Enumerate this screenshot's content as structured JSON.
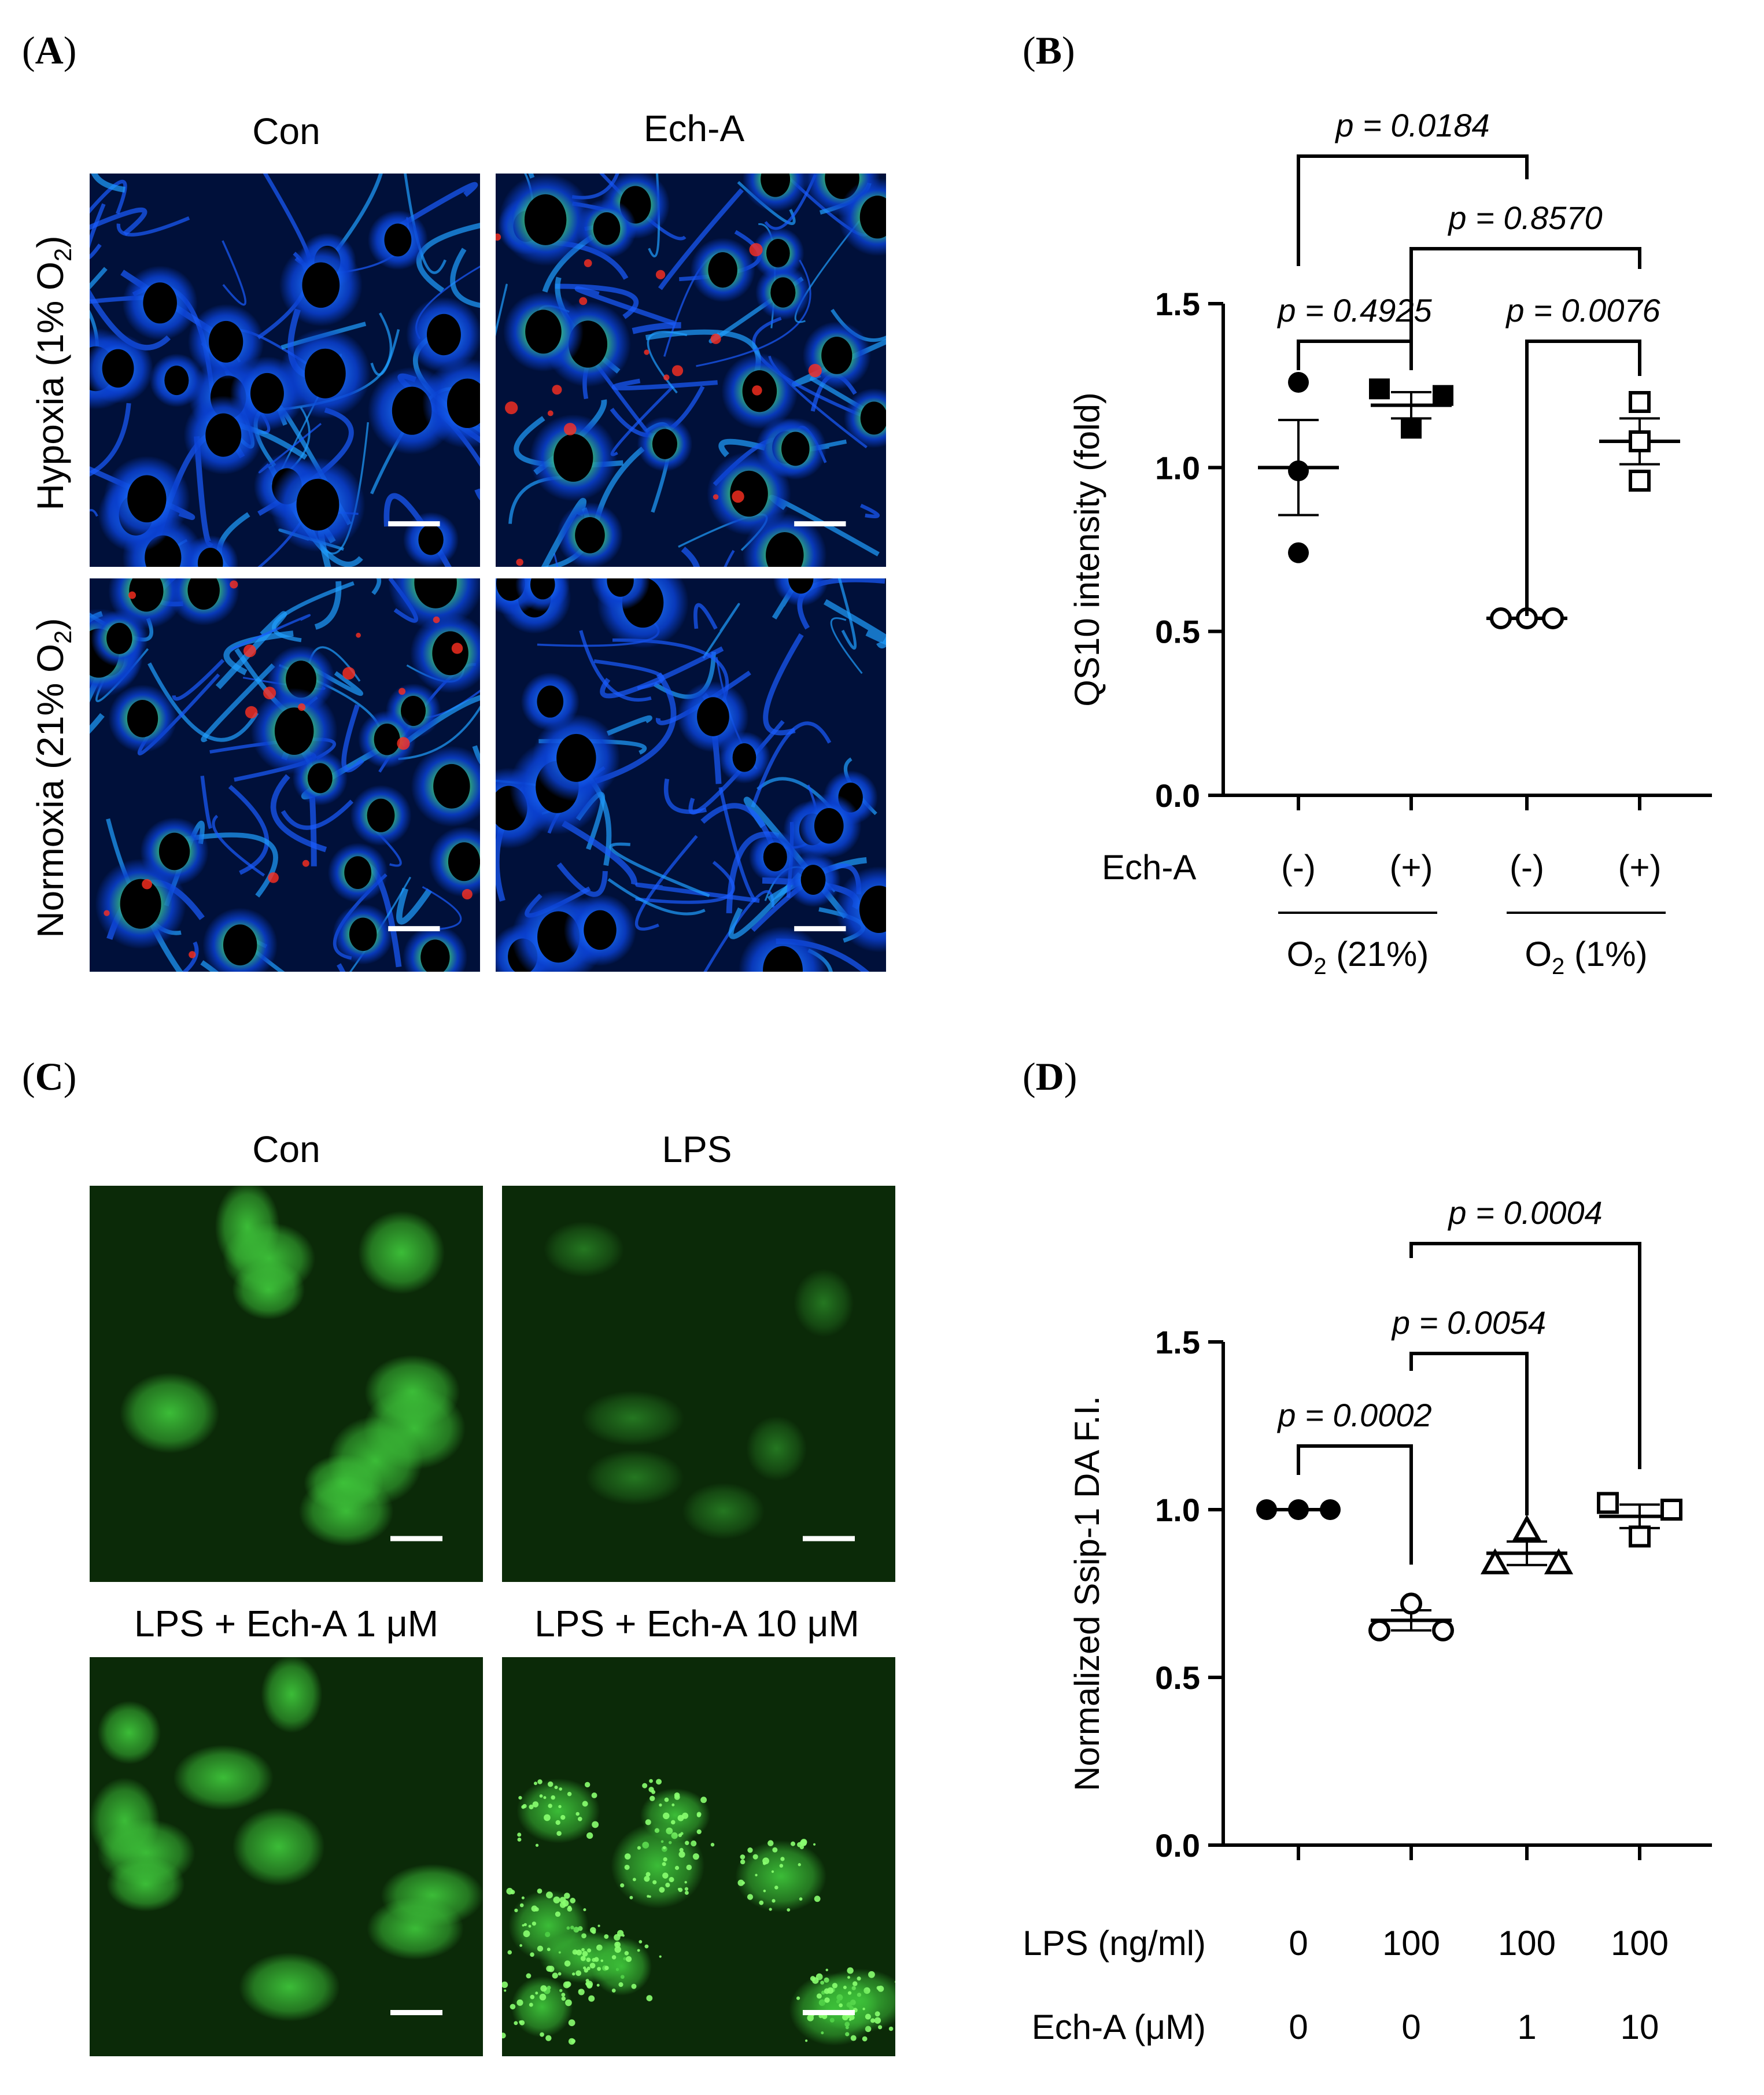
{
  "panels": {
    "a": {
      "letter": "A",
      "col_labels": [
        "Con",
        "Ech-A"
      ],
      "row_labels": [
        "Hypoxia (1% O",
        ")",
        "Normoxia (21% O",
        ")"
      ],
      "row_subscript": "2"
    },
    "b": {
      "letter": "B"
    },
    "c": {
      "letter": "C",
      "col_labels": [
        "Con",
        "LPS"
      ],
      "lower_labels": [
        "LPS + Ech-A 1 μM",
        "LPS + Ech-A 10 μM"
      ]
    },
    "d": {
      "letter": "D"
    }
  },
  "icons": {
    "scalebar": "scale-bar-icon",
    "marker_filled_circle": "filled-circle-marker",
    "marker_filled_square": "filled-square-marker",
    "marker_open_circle": "open-circle-marker",
    "marker_open_square": "open-square-marker",
    "marker_open_triangle": "open-triangle-marker"
  },
  "colors": {
    "heatmap_base": "#00103a",
    "fluorescence_base": "#0b2a08",
    "fluorescence_cell": "#3ec43a"
  },
  "chart_data": [
    {
      "id": "B",
      "type": "scatter",
      "ylabel": "QS10 intensity (fold)",
      "ylim": [
        0,
        1.5
      ],
      "yticks": [
        "0.0",
        "0.5",
        "1.0",
        "1.5"
      ],
      "ytick_values": [
        0,
        0.5,
        1.0,
        1.5
      ],
      "row_labels": [
        "Ech-A"
      ],
      "categories": [
        "(-)",
        "(+)",
        "(-)",
        "(+)"
      ],
      "group_labels": [
        {
          "pre": "O",
          "sub": "2",
          "post": " (21%)"
        },
        {
          "pre": "O",
          "sub": "2",
          "post": " (1%)"
        }
      ],
      "series": [
        {
          "marker": "filled-circle",
          "points": [
            1.26,
            0.99,
            0.74
          ],
          "mean": 1.0,
          "sem": 0.145
        },
        {
          "marker": "filled-square",
          "points": [
            1.24,
            1.22,
            1.12
          ],
          "mean": 1.19,
          "sem": 0.04
        },
        {
          "marker": "open-circle",
          "points": [
            0.54,
            0.54,
            0.54
          ],
          "mean": 0.54,
          "sem": 0.005
        },
        {
          "marker": "open-square",
          "points": [
            1.2,
            1.08,
            0.96
          ],
          "mean": 1.08,
          "sem": 0.07
        }
      ],
      "comparisons": [
        {
          "label": "p = 0.4925",
          "from": 0,
          "to": 1
        },
        {
          "label": "p = 0.0076",
          "from": 2,
          "to": 3
        },
        {
          "label": "p = 0.0184",
          "from": 0,
          "to": 2
        },
        {
          "label": "p = 0.8570",
          "from": 1,
          "to": 3
        }
      ]
    },
    {
      "id": "D",
      "type": "scatter",
      "ylabel": "Normalized Ssip-1 DA F.I.",
      "ylim": [
        0,
        1.5
      ],
      "yticks": [
        "0.0",
        "0.5",
        "1.0",
        "1.5"
      ],
      "ytick_values": [
        0,
        0.5,
        1.0,
        1.5
      ],
      "row_labels": [
        "LPS (ng/ml)",
        "Ech-A (μM)"
      ],
      "category_rows": [
        [
          "0",
          "100",
          "100",
          "100"
        ],
        [
          "0",
          "0",
          "1",
          "10"
        ]
      ],
      "series": [
        {
          "marker": "filled-circle",
          "points": [
            1.0,
            1.0,
            1.0
          ],
          "mean": 1.0,
          "sem": 0.0
        },
        {
          "marker": "open-circle",
          "points": [
            0.72,
            0.64,
            0.64
          ],
          "mean": 0.67,
          "sem": 0.03
        },
        {
          "marker": "open-triangle",
          "points": [
            0.94,
            0.84,
            0.84
          ],
          "mean": 0.87,
          "sem": 0.035
        },
        {
          "marker": "open-square",
          "points": [
            1.02,
            1.0,
            0.92
          ],
          "mean": 0.98,
          "sem": 0.035
        }
      ],
      "comparisons": [
        {
          "label": "p = 0.0002",
          "from": 0,
          "to": 1
        },
        {
          "label": "p = 0.0054",
          "from": 1,
          "to": 2
        },
        {
          "label": "p = 0.0004",
          "from": 1,
          "to": 3
        }
      ]
    }
  ]
}
